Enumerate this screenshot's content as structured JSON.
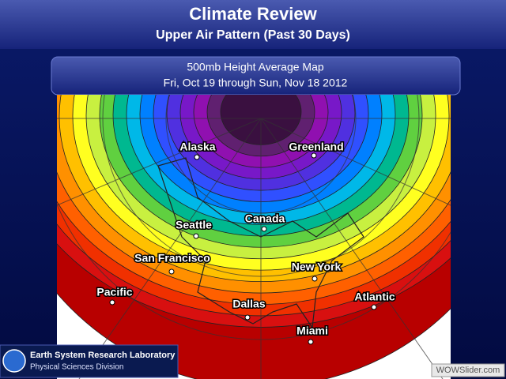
{
  "header": {
    "title": "Climate Review",
    "subtitle": "Upper Air Pattern (Past 30 Days)"
  },
  "panel": {
    "title": "500mb Height Average Map",
    "dates": "Fri, Oct 19 through Sun, Nov 18 2012"
  },
  "map": {
    "labels": [
      "Alaska",
      "Greenland",
      "Canada",
      "Seattle",
      "San Francisco",
      "New York",
      "Pacific",
      "Dallas",
      "Atlantic",
      "Miami"
    ]
  },
  "footer": {
    "lab": "Earth System Research Laboratory",
    "division": "Physical Sciences Division"
  },
  "watermark": "WOWSlider.com"
}
